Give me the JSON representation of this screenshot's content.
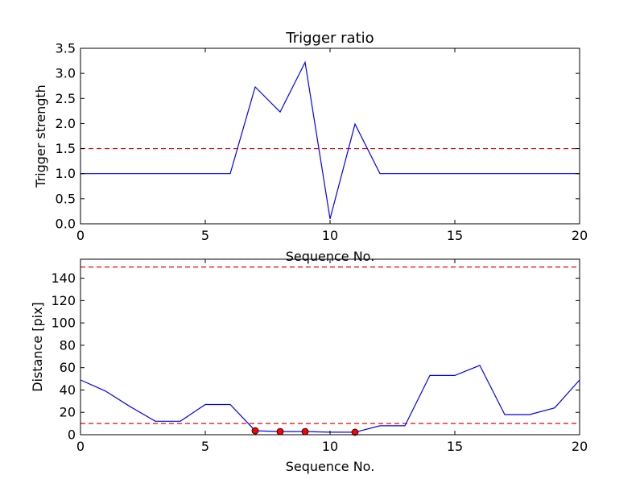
{
  "chart_data": [
    {
      "type": "line",
      "title": "Trigger ratio",
      "xlabel": "Sequence No.",
      "ylabel": "Trigger strength",
      "xlim": [
        0,
        20
      ],
      "ylim": [
        0,
        3.5
      ],
      "xticks": [
        0,
        5,
        10,
        15,
        20
      ],
      "yticks": [
        0.0,
        0.5,
        1.0,
        1.5,
        2.0,
        2.5,
        3.0,
        3.5
      ],
      "ytick_decimals": 1,
      "grid": false,
      "series": [
        {
          "x": [
            0,
            1,
            2,
            3,
            4,
            5,
            6,
            7,
            8,
            9,
            10,
            11,
            12,
            13,
            14,
            15,
            16,
            17,
            18,
            19,
            20
          ],
          "values": [
            1.0,
            1.0,
            1.0,
            1.0,
            1.0,
            1.0,
            1.0,
            2.73,
            2.23,
            3.22,
            0.1,
            1.99,
            1.0,
            1.0,
            1.0,
            1.0,
            1.0,
            1.0,
            1.0,
            1.0,
            1.0
          ],
          "color": "#0000ff",
          "style": "solid"
        }
      ],
      "hlines": [
        {
          "y": 1.5,
          "color": "#ff0000",
          "style": "dashed"
        }
      ]
    },
    {
      "type": "line",
      "title": "",
      "xlabel": "Sequence No.",
      "ylabel": "Distance [pix]",
      "xlim": [
        0,
        20
      ],
      "ylim": [
        0,
        157
      ],
      "xticks": [
        0,
        5,
        10,
        15,
        20
      ],
      "yticks": [
        0,
        20,
        40,
        60,
        80,
        100,
        120,
        140
      ],
      "ytick_decimals": 0,
      "grid": false,
      "series": [
        {
          "x": [
            0,
            1,
            2,
            3,
            4,
            5,
            6,
            7,
            8,
            9,
            10,
            11,
            12,
            13,
            14,
            15,
            16,
            17,
            18,
            19,
            20
          ],
          "values": [
            49,
            39,
            25,
            12,
            12,
            27,
            27,
            3.5,
            2.8,
            2.8,
            2.2,
            2.2,
            8,
            8,
            53,
            53,
            62,
            18,
            18,
            24,
            49
          ],
          "color": "#0000ff",
          "style": "solid"
        }
      ],
      "markers": {
        "x": [
          7,
          8,
          9,
          11
        ],
        "values": [
          3.5,
          2.8,
          2.8,
          2.2
        ],
        "color": "#ff0000"
      },
      "hlines": [
        {
          "y": 150,
          "color": "#ff0000",
          "style": "dashed"
        },
        {
          "y": 10,
          "color": "#ff0000",
          "style": "dashed"
        }
      ]
    }
  ]
}
